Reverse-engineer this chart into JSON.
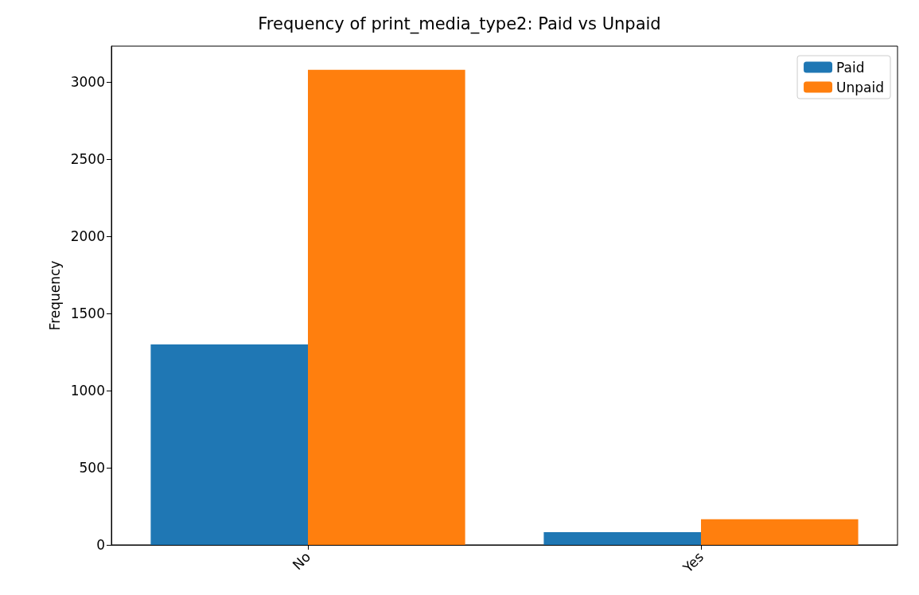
{
  "chart_data": {
    "type": "bar",
    "title": "Frequency of print_media_type2: Paid vs Unpaid",
    "ylabel": "Frequency",
    "categories": [
      "No",
      "Yes"
    ],
    "series": [
      {
        "name": "Paid",
        "color": "#1f77b4",
        "values": [
          1300,
          82
        ]
      },
      {
        "name": "Unpaid",
        "color": "#ff7f0e",
        "values": [
          3080,
          166
        ]
      }
    ],
    "ylim": [
      0,
      3234
    ],
    "yticks": [
      0,
      500,
      1000,
      1500,
      2000,
      2500,
      3000
    ],
    "grid": false,
    "legend": "top right"
  }
}
